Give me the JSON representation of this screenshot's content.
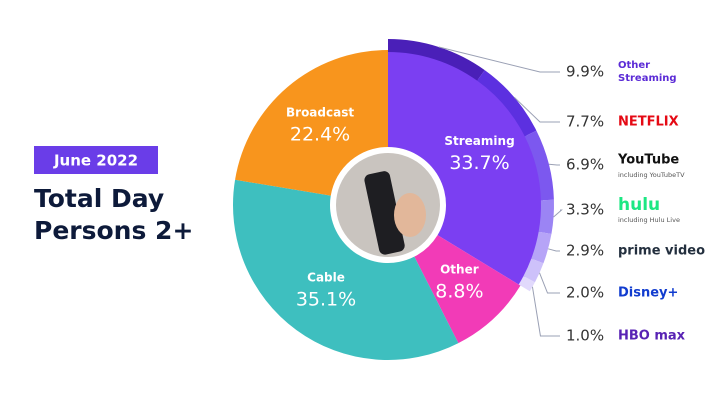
{
  "chart_data": {
    "type": "donut",
    "subtitle": "June 2022",
    "title": "Total Day Persons 2+",
    "categories": [
      "Streaming",
      "Other",
      "Cable",
      "Broadcast"
    ],
    "values": [
      33.7,
      8.8,
      35.1,
      22.4
    ],
    "value_labels": [
      "33.7%",
      "8.8%",
      "35.1%",
      "22.4%"
    ],
    "colors": [
      "#7b3ff2",
      "#f23bb7",
      "#3ebfbf",
      "#f8951d"
    ],
    "breakdown": {
      "categories": [
        "Other Streaming",
        "NETFLIX",
        "YouTube",
        "hulu",
        "prime video",
        "Disney+",
        "HBO max"
      ],
      "sublabels": [
        null,
        null,
        "including YouTubeTV",
        "including Hulu Live",
        null,
        null,
        null
      ],
      "values": [
        9.9,
        7.7,
        6.9,
        3.3,
        2.9,
        2.0,
        1.0
      ],
      "value_labels": [
        "9.9%",
        "7.7%",
        "6.9%",
        "3.3%",
        "2.9%",
        "2.0%",
        "1.0%"
      ],
      "colors": [
        "#4a1fb8",
        "#5c30e0",
        "#7c58ef",
        "#9b84f4",
        "#b6a4f7",
        "#cdc1fa",
        "#e1d9fc"
      ],
      "label_colors": [
        "#5b2bd6",
        "#e50914",
        "#111111",
        "#1ce783",
        "#232f3e",
        "#113ccf",
        "#5822b4"
      ]
    }
  }
}
